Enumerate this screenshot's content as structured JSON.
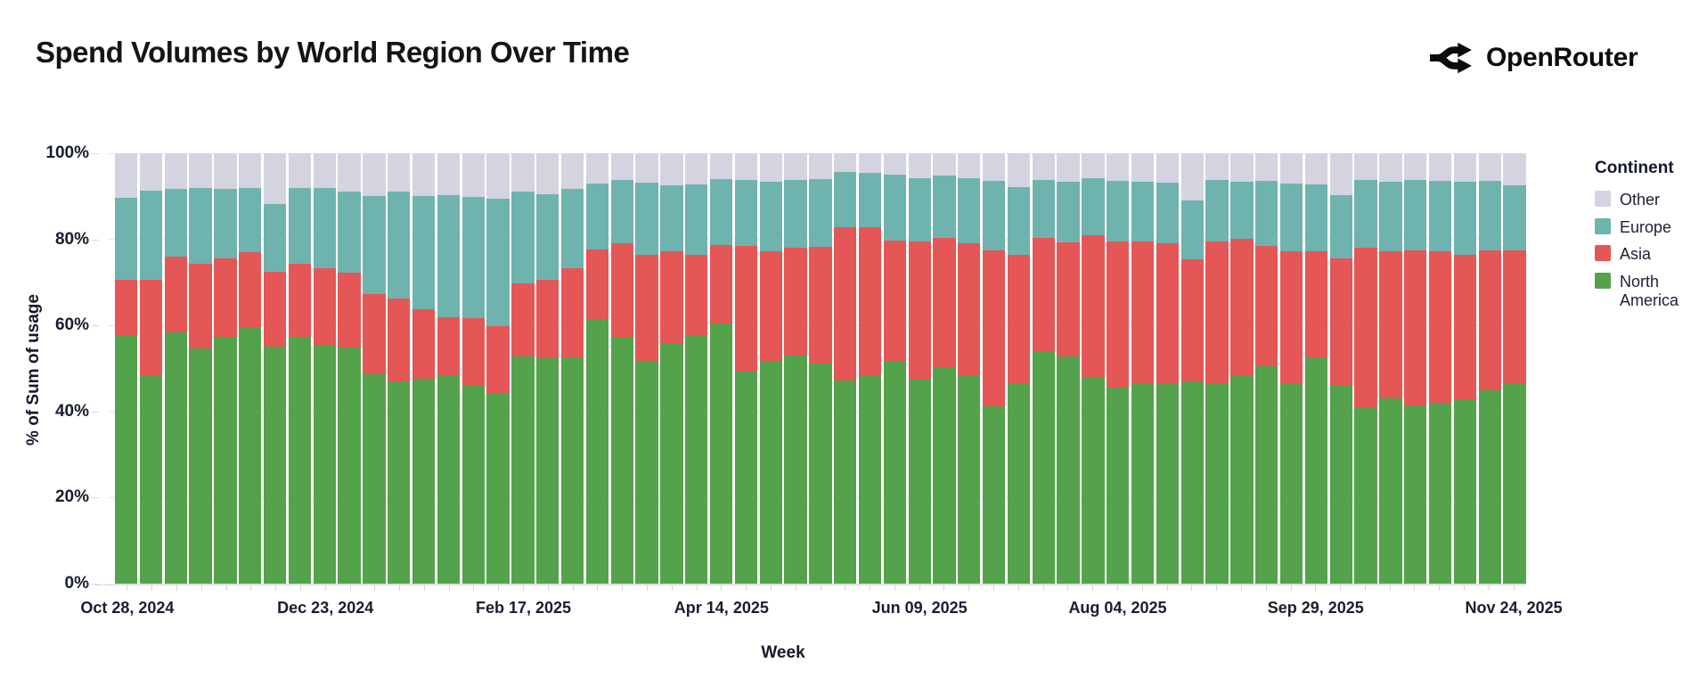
{
  "header": {
    "title": "Spend Volumes by World Region Over Time",
    "brand_name": "OpenRouter"
  },
  "chart_data": {
    "type": "bar",
    "stacked": true,
    "normalized_percent": true,
    "title": "Spend Volumes by World Region Over Time",
    "xlabel": "Week",
    "ylabel": "% of Sum of usage",
    "ylim": [
      0,
      100
    ],
    "grid": true,
    "legend_position": "right",
    "legend_title": "Continent",
    "y_ticks": [
      {
        "value": 0,
        "label": "0%"
      },
      {
        "value": 20,
        "label": "20%"
      },
      {
        "value": 40,
        "label": "40%"
      },
      {
        "value": 60,
        "label": "60%"
      },
      {
        "value": 80,
        "label": "80%"
      },
      {
        "value": 100,
        "label": "100%"
      }
    ],
    "x_tick_label_every": 8,
    "x_tick_labels": [
      "Oct 28, 2024",
      "Dec 23, 2024",
      "Feb 17, 2025",
      "Apr 14, 2025",
      "Jun 09, 2025",
      "Aug 04, 2025",
      "Sep 29, 2025",
      "Nov 24, 2025"
    ],
    "categories": [
      "2024-10-28",
      "2024-11-04",
      "2024-11-11",
      "2024-11-18",
      "2024-11-25",
      "2024-12-02",
      "2024-12-09",
      "2024-12-16",
      "2024-12-23",
      "2024-12-30",
      "2025-01-06",
      "2025-01-13",
      "2025-01-20",
      "2025-01-27",
      "2025-02-03",
      "2025-02-10",
      "2025-02-17",
      "2025-02-24",
      "2025-03-03",
      "2025-03-10",
      "2025-03-17",
      "2025-03-24",
      "2025-03-31",
      "2025-04-07",
      "2025-04-14",
      "2025-04-21",
      "2025-04-28",
      "2025-05-05",
      "2025-05-12",
      "2025-05-19",
      "2025-05-26",
      "2025-06-02",
      "2025-06-09",
      "2025-06-16",
      "2025-06-23",
      "2025-06-30",
      "2025-07-07",
      "2025-07-14",
      "2025-07-21",
      "2025-07-28",
      "2025-08-04",
      "2025-08-11",
      "2025-08-18",
      "2025-08-25",
      "2025-09-01",
      "2025-09-08",
      "2025-09-15",
      "2025-09-22",
      "2025-09-29",
      "2025-10-06",
      "2025-10-13",
      "2025-10-20",
      "2025-10-27",
      "2025-11-03",
      "2025-11-10",
      "2025-11-17",
      "2025-11-24"
    ],
    "series": [
      {
        "name": "North America",
        "color": "#54a24b",
        "values": [
          57.8,
          48.3,
          58.4,
          54.7,
          57.3,
          59.5,
          55.0,
          57.4,
          55.4,
          54.9,
          48.7,
          47.1,
          47.6,
          48.5,
          46.0,
          44.4,
          52.8,
          52.3,
          52.6,
          61.5,
          57.2,
          51.8,
          55.8,
          57.5,
          60.4,
          49.2,
          51.8,
          53.0,
          51.1,
          47.2,
          48.5,
          51.5,
          47.4,
          50.4,
          48.2,
          41.2,
          46.3,
          54.0,
          52.8,
          48.1,
          45.6,
          46.3,
          46.4,
          47.0,
          46.6,
          48.3,
          50.6,
          46.3,
          52.5,
          45.9,
          40.9,
          43.0,
          41.4,
          42.1,
          42.8,
          44.9,
          46.3
        ]
      },
      {
        "name": "Asia",
        "color": "#e45756",
        "values": [
          12.9,
          22.2,
          17.5,
          19.7,
          18.3,
          17.6,
          17.4,
          16.9,
          17.8,
          17.4,
          18.5,
          19.1,
          16.2,
          13.4,
          15.7,
          15.4,
          16.9,
          18.4,
          20.6,
          16.1,
          21.9,
          24.5,
          21.4,
          18.9,
          18.3,
          29.3,
          25.4,
          25.0,
          27.2,
          35.6,
          34.3,
          28.2,
          32.1,
          30.0,
          30.9,
          36.3,
          30.2,
          26.3,
          26.4,
          32.9,
          34.0,
          33.1,
          32.7,
          28.3,
          33.0,
          31.8,
          27.9,
          30.9,
          24.8,
          29.7,
          37.1,
          34.3,
          36.0,
          35.1,
          33.5,
          32.5,
          31.1
        ]
      },
      {
        "name": "Europe",
        "color": "#6fb3ae",
        "values": [
          18.9,
          20.8,
          15.9,
          17.6,
          16.2,
          14.9,
          15.9,
          17.6,
          18.8,
          18.9,
          22.9,
          24.8,
          26.2,
          28.4,
          28.1,
          29.7,
          21.5,
          19.8,
          18.5,
          15.4,
          14.6,
          16.8,
          15.4,
          16.4,
          15.3,
          15.2,
          16.1,
          15.8,
          15.7,
          12.8,
          12.6,
          15.3,
          14.8,
          14.5,
          15.0,
          16.1,
          15.6,
          13.5,
          14.1,
          13.2,
          13.9,
          13.9,
          14.0,
          13.7,
          14.1,
          13.2,
          15.0,
          15.8,
          15.4,
          14.7,
          15.8,
          16.0,
          16.3,
          16.3,
          17.0,
          16.1,
          15.2
        ]
      },
      {
        "name": "Other",
        "color": "#d3d4e0",
        "values": [
          10.4,
          8.7,
          8.2,
          8.0,
          8.2,
          8.0,
          11.7,
          8.1,
          8.0,
          8.8,
          9.9,
          9.0,
          10.0,
          9.7,
          10.2,
          10.5,
          8.8,
          9.5,
          8.3,
          7.0,
          6.3,
          6.9,
          7.4,
          7.2,
          6.0,
          6.3,
          6.7,
          6.2,
          6.0,
          4.4,
          4.6,
          5.0,
          5.7,
          5.1,
          5.9,
          6.4,
          7.9,
          6.2,
          6.7,
          5.8,
          6.5,
          6.7,
          6.9,
          11.0,
          6.3,
          6.7,
          6.5,
          7.0,
          7.3,
          9.7,
          6.2,
          6.7,
          6.3,
          6.5,
          6.7,
          6.5,
          7.4
        ]
      }
    ]
  }
}
